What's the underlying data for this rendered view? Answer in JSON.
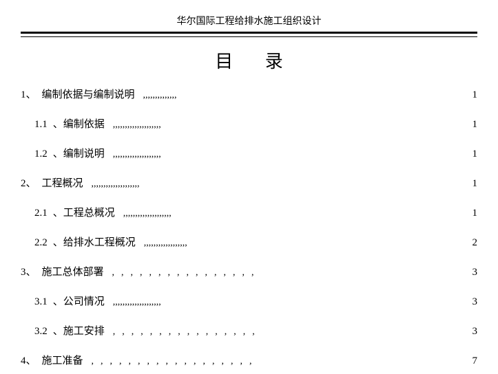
{
  "header": {
    "text": "华尔国际工程给排水施工组织设计"
  },
  "title": "目  录",
  "toc": {
    "entries": [
      {
        "level": 1,
        "number": "1、",
        "text": "编制依据与编制说明",
        "dots": ",,,,,,,,,,,,,,",
        "dots_spaced": false,
        "page": "1"
      },
      {
        "level": 2,
        "number": "1.1",
        "text": "、编制依据",
        "dots": ",,,,,,,,,,,,,,,,,,,,",
        "dots_spaced": false,
        "page": "1"
      },
      {
        "level": 2,
        "number": "1.2",
        "text": "、编制说明",
        "dots": ",,,,,,,,,,,,,,,,,,,,",
        "dots_spaced": false,
        "page": "1"
      },
      {
        "level": 1,
        "number": "2、",
        "text": " 工程概况",
        "dots": ",,,,,,,,,,,,,,,,,,,,",
        "dots_spaced": false,
        "page": "1"
      },
      {
        "level": 2,
        "number": "2.1",
        "text": "、工程总概况",
        "dots": ",,,,,,,,,,,,,,,,,,,,",
        "dots_spaced": false,
        "page": "1"
      },
      {
        "level": 2,
        "number": "2.2",
        "text": "、给排水工程概况",
        "dots": ",,,,,,,,,,,,,,,,,,",
        "dots_spaced": false,
        "page": "2"
      },
      {
        "level": 1,
        "number": "3、",
        "text": " 施工总体部署",
        "dots": ",,,,,,,,,,,,,,,,",
        "dots_spaced": true,
        "page": "3"
      },
      {
        "level": 2,
        "number": "3.1",
        "text": "、公司情况",
        "dots": ",,,,,,,,,,,,,,,,,,,,",
        "dots_spaced": false,
        "page": "3"
      },
      {
        "level": 2,
        "number": "3.2",
        "text": "、施工安排",
        "dots": ",,,,,,,,,,,,,,,,",
        "dots_spaced": true,
        "page": "3"
      },
      {
        "level": 1,
        "number": "4、",
        "text": " 施工准备",
        "dots": ",,,,,,,,,,,,,,,,,,",
        "dots_spaced": true,
        "page": "7"
      }
    ]
  }
}
